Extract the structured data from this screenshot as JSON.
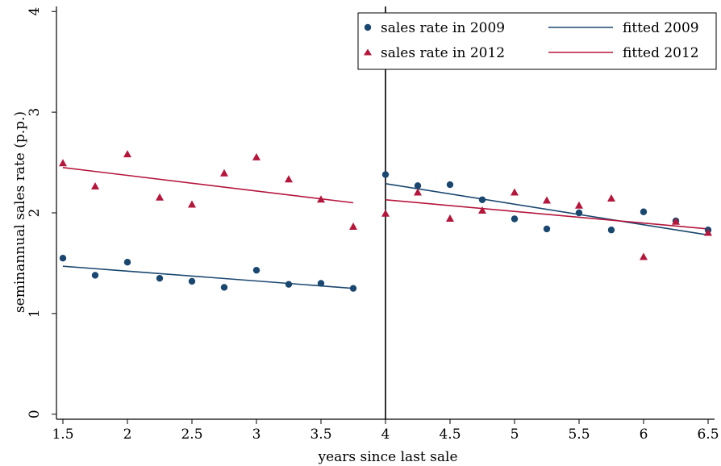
{
  "chart_data": {
    "type": "scatter",
    "xlabel": "years since last sale",
    "ylabel": "seminannual sales rate (p.p.)",
    "xlim": [
      1.45,
      6.55
    ],
    "ylim": [
      -0.05,
      4.05
    ],
    "xticks": [
      1.5,
      2,
      2.5,
      3,
      3.5,
      4,
      4.5,
      5,
      5.5,
      6,
      6.5
    ],
    "xtick_labels": [
      "1.5",
      "2",
      "2.5",
      "3",
      "3.5",
      "4",
      "4.5",
      "5",
      "5.5",
      "6",
      "6.5"
    ],
    "yticks": [
      0,
      1,
      2,
      3,
      4
    ],
    "ytick_labels": [
      "0",
      "1",
      "2",
      "3",
      "4"
    ],
    "grid": false,
    "legend_position": "top-right",
    "reference_line_x": 4,
    "colors": {
      "s2009": "#1a476f",
      "s2012": "#b5163c"
    },
    "series": [
      {
        "name": "sales rate in 2009",
        "kind": "scatter",
        "marker": "circle",
        "color": "#1a476f",
        "x": [
          1.5,
          1.75,
          2,
          2.25,
          2.5,
          2.75,
          3,
          3.25,
          3.5,
          3.75,
          4,
          4.25,
          4.5,
          4.75,
          5,
          5.25,
          5.5,
          5.75,
          6,
          6.25,
          6.5
        ],
        "y": [
          1.55,
          1.38,
          1.51,
          1.35,
          1.32,
          1.26,
          1.43,
          1.29,
          1.3,
          1.25,
          2.38,
          2.27,
          2.28,
          2.13,
          1.94,
          1.84,
          2.0,
          1.83,
          2.01,
          1.92,
          1.83
        ]
      },
      {
        "name": "sales rate in 2012",
        "kind": "scatter",
        "marker": "triangle",
        "color": "#b5163c",
        "x": [
          1.5,
          1.75,
          2,
          2.25,
          2.5,
          2.75,
          3,
          3.25,
          3.5,
          3.75,
          4,
          4.25,
          4.5,
          4.75,
          5,
          5.25,
          5.5,
          5.75,
          6,
          6.25,
          6.5
        ],
        "y": [
          2.49,
          2.26,
          2.58,
          2.15,
          2.08,
          2.39,
          2.55,
          2.33,
          2.13,
          1.86,
          1.99,
          2.2,
          1.94,
          2.02,
          2.2,
          2.12,
          2.07,
          2.14,
          1.56,
          1.91,
          1.8
        ]
      },
      {
        "name": "fitted 2009",
        "kind": "line",
        "color": "#1a476f",
        "segments": [
          {
            "x": [
              1.5,
              3.75
            ],
            "y": [
              1.47,
              1.25
            ]
          },
          {
            "x": [
              4,
              6.5
            ],
            "y": [
              2.29,
              1.78
            ]
          }
        ]
      },
      {
        "name": "fitted 2012",
        "kind": "line",
        "color": "#b5163c",
        "segments": [
          {
            "x": [
              1.5,
              3.75
            ],
            "y": [
              2.45,
              2.1
            ]
          },
          {
            "x": [
              4,
              6.5
            ],
            "y": [
              2.13,
              1.84
            ]
          }
        ]
      }
    ]
  }
}
